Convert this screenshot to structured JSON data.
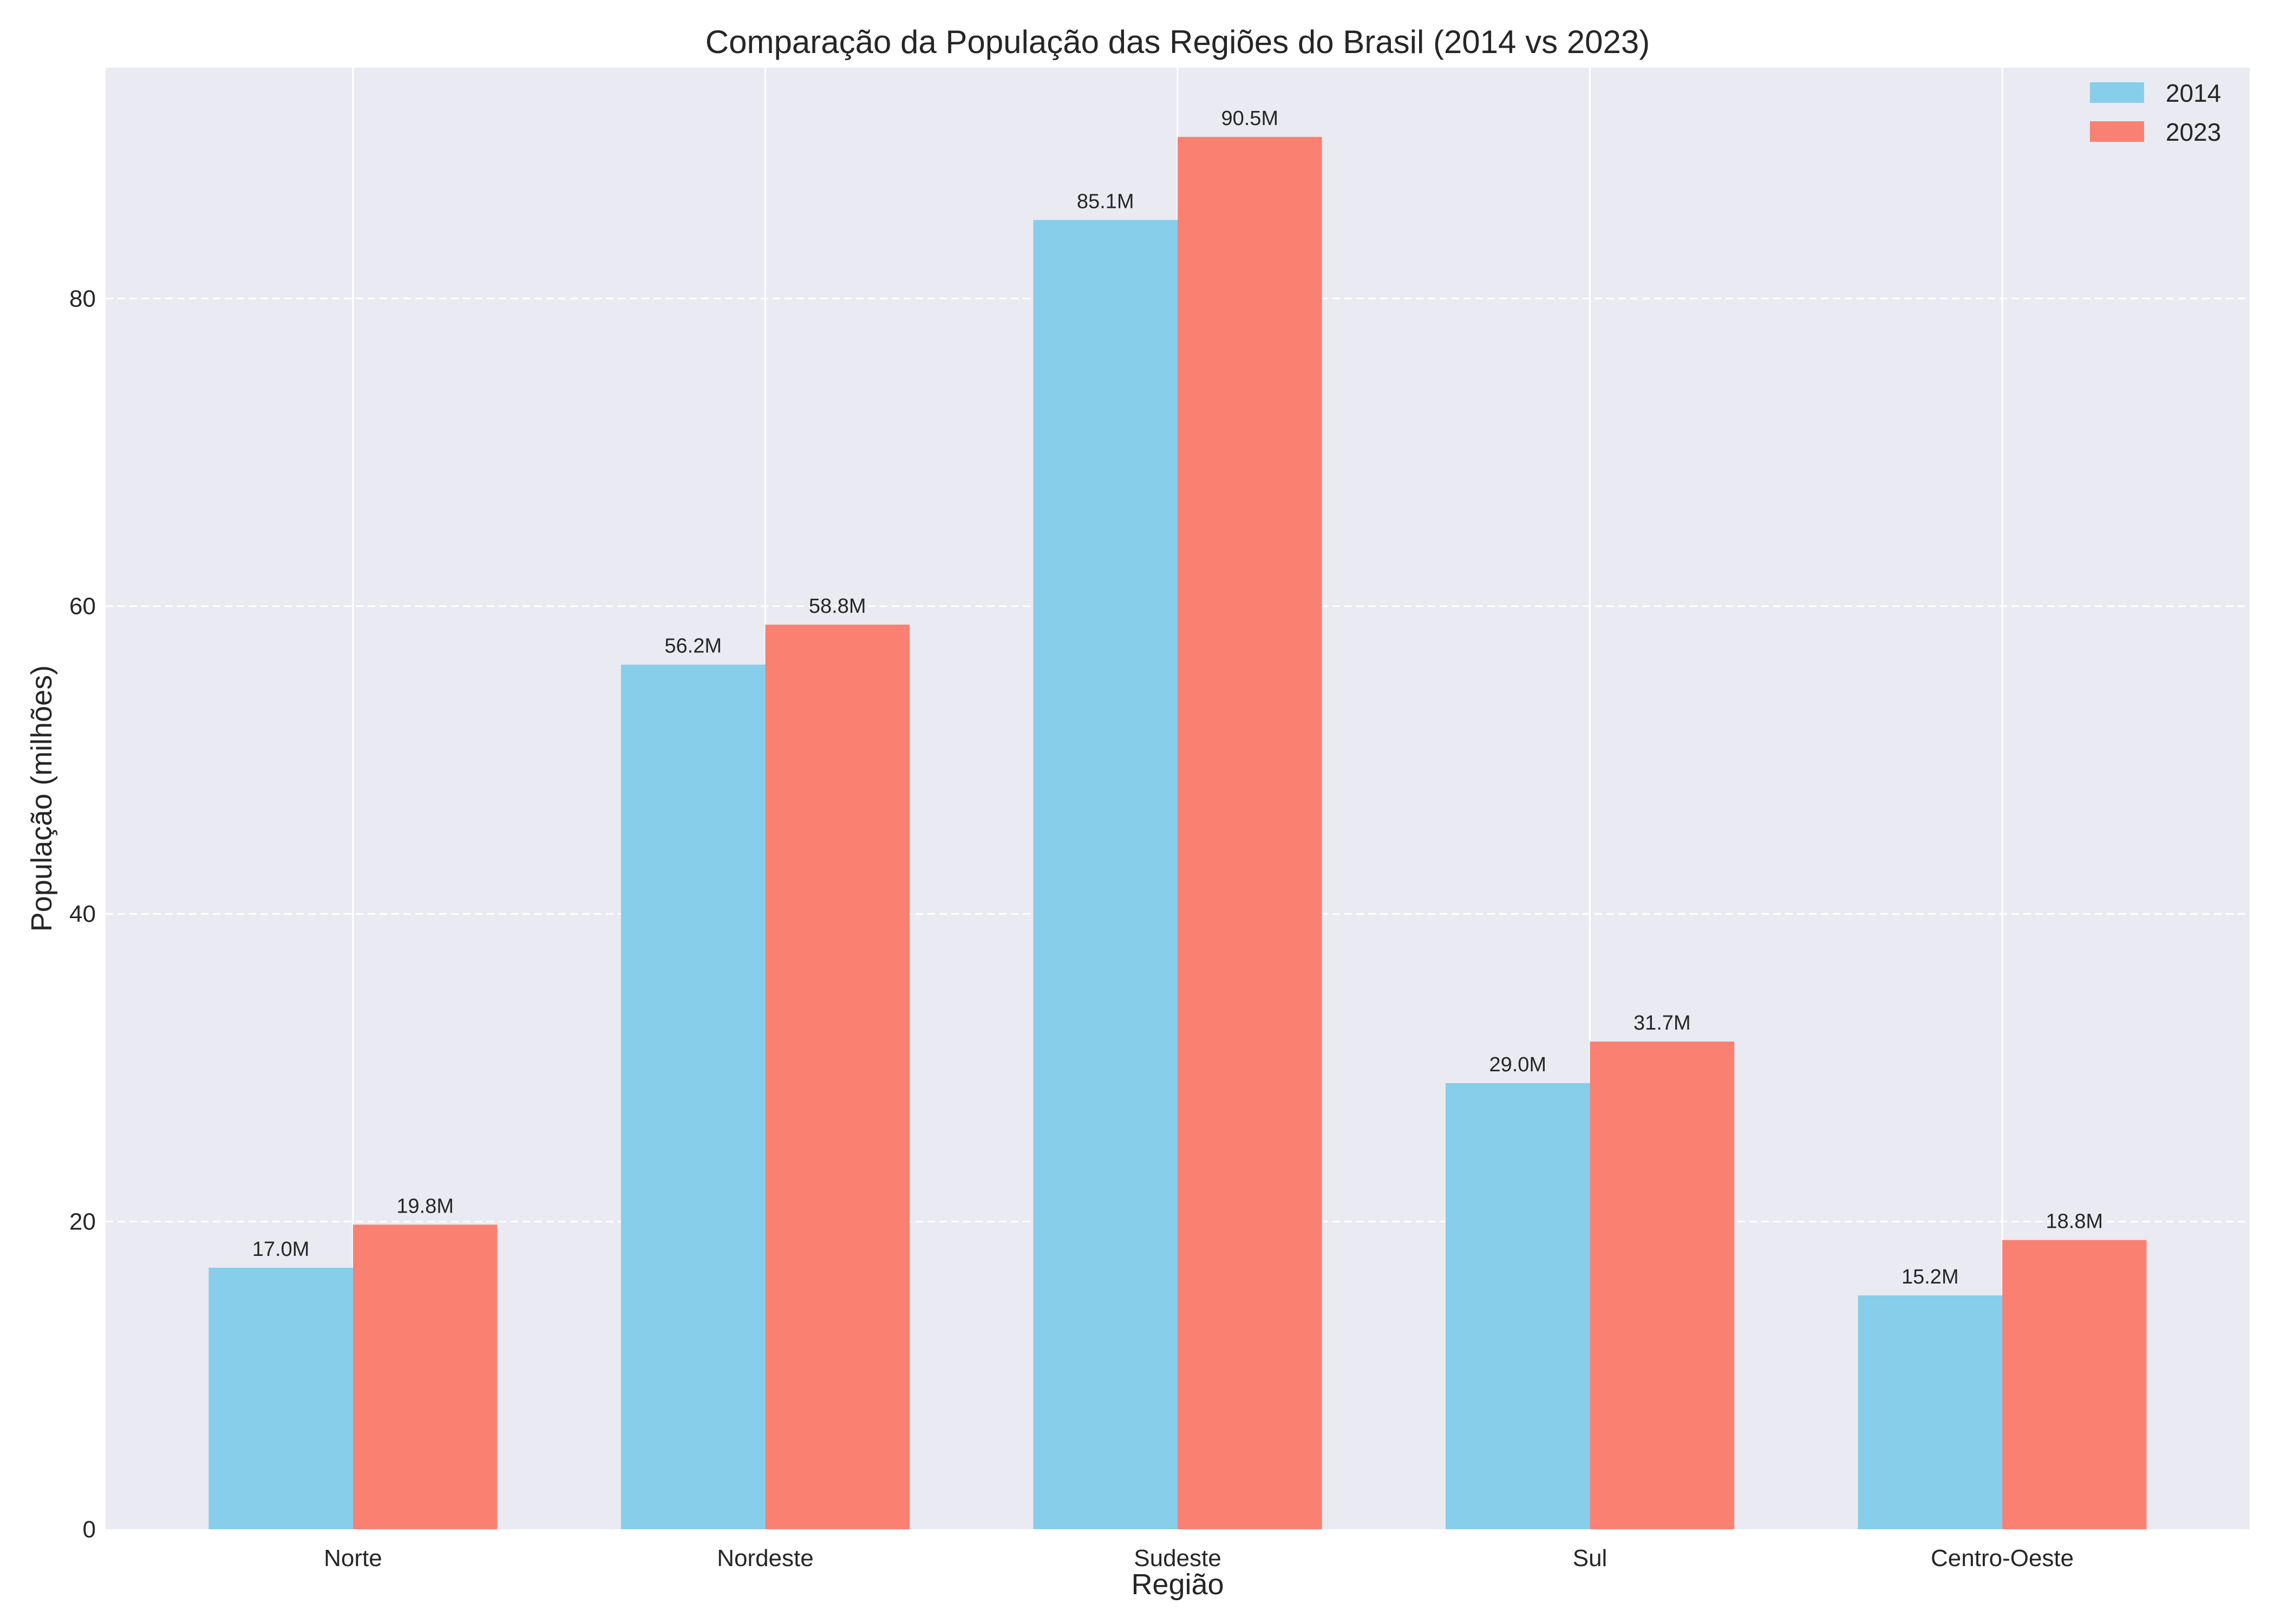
{
  "chart_data": {
    "type": "bar",
    "title": "Comparação da População das Regiões do Brasil (2014 vs 2023)",
    "xlabel": "Região",
    "ylabel": "População (milhões)",
    "categories": [
      "Norte",
      "Nordeste",
      "Sudeste",
      "Sul",
      "Centro-Oeste"
    ],
    "series": [
      {
        "name": "2014",
        "color": "#87CEEB",
        "values": [
          17.0,
          56.2,
          85.1,
          29.0,
          15.2
        ],
        "labels": [
          "17.0M",
          "56.2M",
          "85.1M",
          "29.0M",
          "15.2M"
        ]
      },
      {
        "name": "2023",
        "color": "#FA8072",
        "values": [
          19.8,
          58.8,
          90.5,
          31.7,
          18.8
        ],
        "labels": [
          "19.8M",
          "58.8M",
          "90.5M",
          "31.7M",
          "18.8M"
        ]
      }
    ],
    "ylim": [
      0,
      95.0
    ],
    "yticks": [
      0,
      20,
      40,
      60,
      80
    ],
    "grid": true,
    "legend_position": "top-right",
    "background_color": "#EAEAF2"
  }
}
